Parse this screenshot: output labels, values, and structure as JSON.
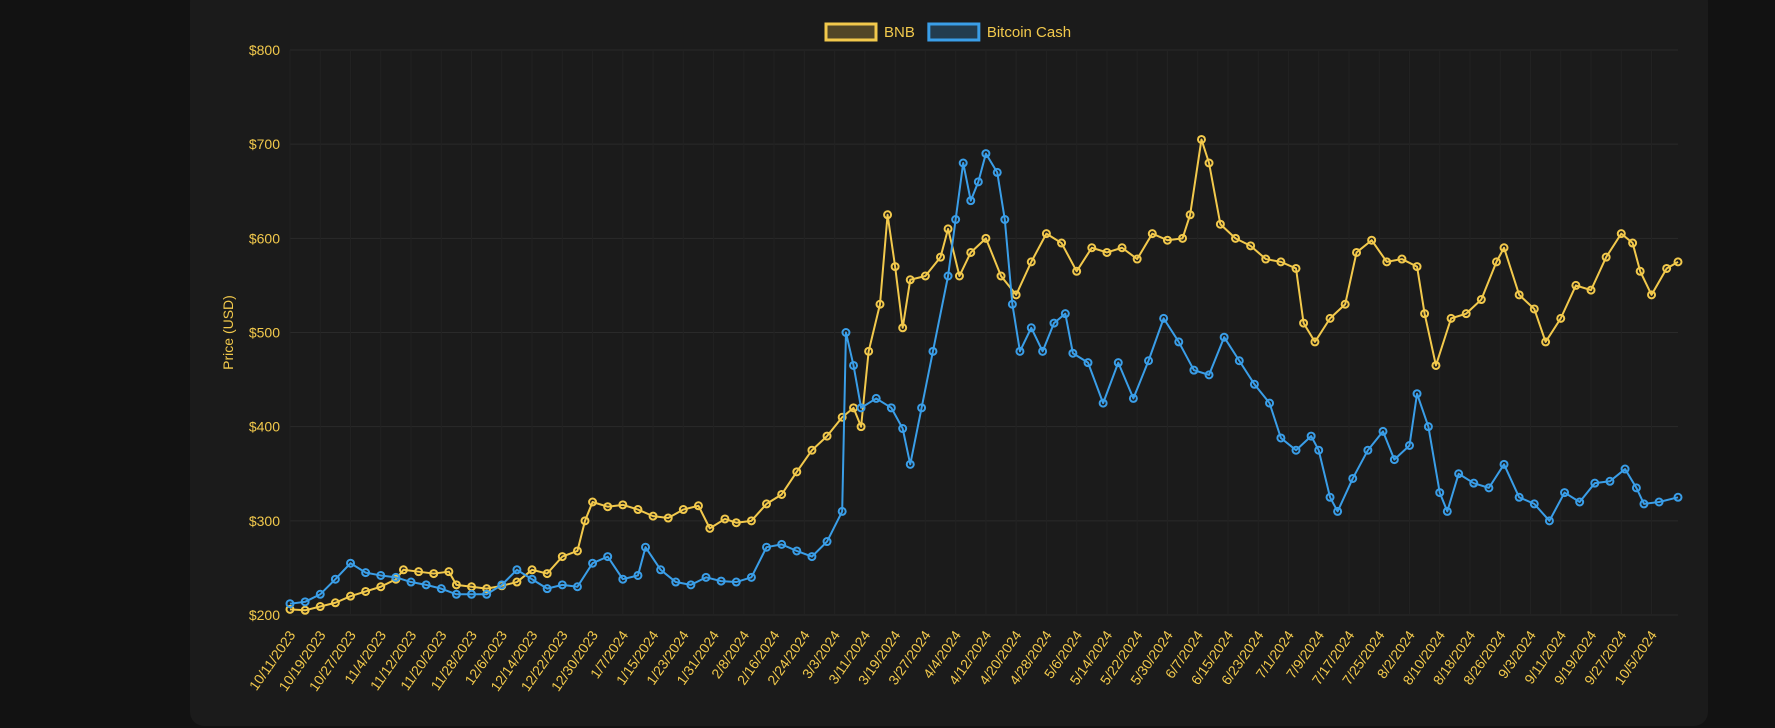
{
  "chart_data": {
    "type": "line",
    "ylabel": "Price (USD)",
    "ylim": [
      200,
      800
    ],
    "yticks": [
      200,
      300,
      400,
      500,
      600,
      700,
      800
    ],
    "ytick_labels": [
      "$200",
      "$300",
      "$400",
      "$500",
      "$600",
      "$700",
      "$800"
    ],
    "x_start": "2023-10-11",
    "x_end": "2024-10-12",
    "x_tick_labels": [
      "10/11/2023",
      "10/19/2023",
      "10/27/2023",
      "11/4/2023",
      "11/12/2023",
      "11/20/2023",
      "11/28/2023",
      "12/6/2023",
      "12/14/2023",
      "12/22/2023",
      "12/30/2023",
      "1/7/2024",
      "1/15/2024",
      "1/23/2024",
      "1/31/2024",
      "2/8/2024",
      "2/16/2024",
      "2/24/2024",
      "3/3/2024",
      "3/11/2024",
      "3/19/2024",
      "3/27/2024",
      "4/4/2024",
      "4/12/2024",
      "4/20/2024",
      "4/28/2024",
      "5/6/2024",
      "5/14/2024",
      "5/22/2024",
      "5/30/2024",
      "6/7/2024",
      "6/15/2024",
      "6/23/2024",
      "7/1/2024",
      "7/9/2024",
      "7/17/2024",
      "7/25/2024",
      "8/2/2024",
      "8/10/2024",
      "8/18/2024",
      "8/26/2024",
      "9/3/2024",
      "9/11/2024",
      "9/19/2024",
      "9/27/2024",
      "10/5/2024"
    ],
    "legend_position": "top-center",
    "grid": true,
    "series": [
      {
        "name": "BNB",
        "color": "#f2c94c",
        "points": [
          [
            "2023-10-11",
            206
          ],
          [
            "2023-10-15",
            205
          ],
          [
            "2023-10-19",
            209
          ],
          [
            "2023-10-23",
            213
          ],
          [
            "2023-10-27",
            220
          ],
          [
            "2023-10-31",
            225
          ],
          [
            "2023-11-04",
            230
          ],
          [
            "2023-11-08",
            238
          ],
          [
            "2023-11-10",
            248
          ],
          [
            "2023-11-14",
            246
          ],
          [
            "2023-11-18",
            244
          ],
          [
            "2023-11-22",
            246
          ],
          [
            "2023-11-24",
            232
          ],
          [
            "2023-11-28",
            230
          ],
          [
            "2023-12-02",
            228
          ],
          [
            "2023-12-06",
            231
          ],
          [
            "2023-12-10",
            235
          ],
          [
            "2023-12-14",
            248
          ],
          [
            "2023-12-18",
            244
          ],
          [
            "2023-12-22",
            262
          ],
          [
            "2023-12-26",
            268
          ],
          [
            "2023-12-28",
            300
          ],
          [
            "2023-12-30",
            320
          ],
          [
            "2024-01-03",
            315
          ],
          [
            "2024-01-07",
            317
          ],
          [
            "2024-01-11",
            312
          ],
          [
            "2024-01-15",
            305
          ],
          [
            "2024-01-19",
            303
          ],
          [
            "2024-01-23",
            312
          ],
          [
            "2024-01-27",
            316
          ],
          [
            "2024-01-30",
            292
          ],
          [
            "2024-02-03",
            302
          ],
          [
            "2024-02-06",
            298
          ],
          [
            "2024-02-10",
            300
          ],
          [
            "2024-02-14",
            318
          ],
          [
            "2024-02-18",
            328
          ],
          [
            "2024-02-22",
            352
          ],
          [
            "2024-02-26",
            375
          ],
          [
            "2024-03-01",
            390
          ],
          [
            "2024-03-05",
            410
          ],
          [
            "2024-03-08",
            420
          ],
          [
            "2024-03-10",
            400
          ],
          [
            "2024-03-12",
            480
          ],
          [
            "2024-03-15",
            530
          ],
          [
            "2024-03-17",
            625
          ],
          [
            "2024-03-19",
            570
          ],
          [
            "2024-03-21",
            505
          ],
          [
            "2024-03-23",
            556
          ],
          [
            "2024-03-27",
            560
          ],
          [
            "2024-03-31",
            580
          ],
          [
            "2024-04-02",
            610
          ],
          [
            "2024-04-05",
            560
          ],
          [
            "2024-04-08",
            585
          ],
          [
            "2024-04-12",
            600
          ],
          [
            "2024-04-16",
            560
          ],
          [
            "2024-04-20",
            540
          ],
          [
            "2024-04-24",
            575
          ],
          [
            "2024-04-28",
            605
          ],
          [
            "2024-05-02",
            595
          ],
          [
            "2024-05-06",
            565
          ],
          [
            "2024-05-10",
            590
          ],
          [
            "2024-05-14",
            585
          ],
          [
            "2024-05-18",
            590
          ],
          [
            "2024-05-22",
            578
          ],
          [
            "2024-05-26",
            605
          ],
          [
            "2024-05-30",
            598
          ],
          [
            "2024-06-03",
            600
          ],
          [
            "2024-06-05",
            625
          ],
          [
            "2024-06-08",
            705
          ],
          [
            "2024-06-10",
            680
          ],
          [
            "2024-06-13",
            615
          ],
          [
            "2024-06-17",
            600
          ],
          [
            "2024-06-21",
            592
          ],
          [
            "2024-06-25",
            578
          ],
          [
            "2024-06-29",
            575
          ],
          [
            "2024-07-03",
            568
          ],
          [
            "2024-07-05",
            510
          ],
          [
            "2024-07-08",
            490
          ],
          [
            "2024-07-12",
            515
          ],
          [
            "2024-07-16",
            530
          ],
          [
            "2024-07-19",
            585
          ],
          [
            "2024-07-23",
            598
          ],
          [
            "2024-07-27",
            575
          ],
          [
            "2024-07-31",
            578
          ],
          [
            "2024-08-04",
            570
          ],
          [
            "2024-08-06",
            520
          ],
          [
            "2024-08-09",
            465
          ],
          [
            "2024-08-13",
            515
          ],
          [
            "2024-08-17",
            520
          ],
          [
            "2024-08-21",
            535
          ],
          [
            "2024-08-25",
            575
          ],
          [
            "2024-08-27",
            590
          ],
          [
            "2024-08-31",
            540
          ],
          [
            "2024-09-04",
            525
          ],
          [
            "2024-09-07",
            490
          ],
          [
            "2024-09-11",
            515
          ],
          [
            "2024-09-15",
            550
          ],
          [
            "2024-09-19",
            545
          ],
          [
            "2024-09-23",
            580
          ],
          [
            "2024-09-27",
            605
          ],
          [
            "2024-09-30",
            595
          ],
          [
            "2024-10-02",
            565
          ],
          [
            "2024-10-05",
            540
          ],
          [
            "2024-10-09",
            568
          ],
          [
            "2024-10-12",
            575
          ]
        ]
      },
      {
        "name": "Bitcoin Cash",
        "color": "#3a9ee8",
        "points": [
          [
            "2023-10-11",
            212
          ],
          [
            "2023-10-15",
            214
          ],
          [
            "2023-10-19",
            222
          ],
          [
            "2023-10-23",
            238
          ],
          [
            "2023-10-27",
            255
          ],
          [
            "2023-10-31",
            245
          ],
          [
            "2023-11-04",
            242
          ],
          [
            "2023-11-08",
            240
          ],
          [
            "2023-11-12",
            235
          ],
          [
            "2023-11-16",
            232
          ],
          [
            "2023-11-20",
            228
          ],
          [
            "2023-11-24",
            222
          ],
          [
            "2023-11-28",
            222
          ],
          [
            "2023-12-02",
            222
          ],
          [
            "2023-12-06",
            232
          ],
          [
            "2023-12-10",
            248
          ],
          [
            "2023-12-14",
            238
          ],
          [
            "2023-12-18",
            228
          ],
          [
            "2023-12-22",
            232
          ],
          [
            "2023-12-26",
            230
          ],
          [
            "2023-12-30",
            255
          ],
          [
            "2024-01-03",
            262
          ],
          [
            "2024-01-07",
            238
          ],
          [
            "2024-01-11",
            242
          ],
          [
            "2024-01-13",
            272
          ],
          [
            "2024-01-17",
            248
          ],
          [
            "2024-01-21",
            235
          ],
          [
            "2024-01-25",
            232
          ],
          [
            "2024-01-29",
            240
          ],
          [
            "2024-02-02",
            236
          ],
          [
            "2024-02-06",
            235
          ],
          [
            "2024-02-10",
            240
          ],
          [
            "2024-02-14",
            272
          ],
          [
            "2024-02-18",
            275
          ],
          [
            "2024-02-22",
            268
          ],
          [
            "2024-02-26",
            262
          ],
          [
            "2024-03-01",
            278
          ],
          [
            "2024-03-05",
            310
          ],
          [
            "2024-03-06",
            500
          ],
          [
            "2024-03-08",
            465
          ],
          [
            "2024-03-10",
            420
          ],
          [
            "2024-03-14",
            430
          ],
          [
            "2024-03-18",
            420
          ],
          [
            "2024-03-21",
            398
          ],
          [
            "2024-03-23",
            360
          ],
          [
            "2024-03-26",
            420
          ],
          [
            "2024-03-29",
            480
          ],
          [
            "2024-04-02",
            560
          ],
          [
            "2024-04-04",
            620
          ],
          [
            "2024-04-06",
            680
          ],
          [
            "2024-04-08",
            640
          ],
          [
            "2024-04-10",
            660
          ],
          [
            "2024-04-12",
            690
          ],
          [
            "2024-04-15",
            670
          ],
          [
            "2024-04-17",
            620
          ],
          [
            "2024-04-19",
            530
          ],
          [
            "2024-04-21",
            480
          ],
          [
            "2024-04-24",
            505
          ],
          [
            "2024-04-27",
            480
          ],
          [
            "2024-04-30",
            510
          ],
          [
            "2024-05-03",
            520
          ],
          [
            "2024-05-05",
            478
          ],
          [
            "2024-05-09",
            468
          ],
          [
            "2024-05-13",
            425
          ],
          [
            "2024-05-17",
            468
          ],
          [
            "2024-05-21",
            430
          ],
          [
            "2024-05-25",
            470
          ],
          [
            "2024-05-29",
            515
          ],
          [
            "2024-06-02",
            490
          ],
          [
            "2024-06-06",
            460
          ],
          [
            "2024-06-10",
            455
          ],
          [
            "2024-06-14",
            495
          ],
          [
            "2024-06-18",
            470
          ],
          [
            "2024-06-22",
            445
          ],
          [
            "2024-06-26",
            425
          ],
          [
            "2024-06-29",
            388
          ],
          [
            "2024-07-03",
            375
          ],
          [
            "2024-07-07",
            390
          ],
          [
            "2024-07-09",
            375
          ],
          [
            "2024-07-12",
            325
          ],
          [
            "2024-07-14",
            310
          ],
          [
            "2024-07-18",
            345
          ],
          [
            "2024-07-22",
            375
          ],
          [
            "2024-07-26",
            395
          ],
          [
            "2024-07-29",
            365
          ],
          [
            "2024-08-02",
            380
          ],
          [
            "2024-08-04",
            435
          ],
          [
            "2024-08-07",
            400
          ],
          [
            "2024-08-10",
            330
          ],
          [
            "2024-08-12",
            310
          ],
          [
            "2024-08-15",
            350
          ],
          [
            "2024-08-19",
            340
          ],
          [
            "2024-08-23",
            335
          ],
          [
            "2024-08-27",
            360
          ],
          [
            "2024-08-31",
            325
          ],
          [
            "2024-09-04",
            318
          ],
          [
            "2024-09-08",
            300
          ],
          [
            "2024-09-12",
            330
          ],
          [
            "2024-09-16",
            320
          ],
          [
            "2024-09-20",
            340
          ],
          [
            "2024-09-24",
            342
          ],
          [
            "2024-09-28",
            355
          ],
          [
            "2024-10-01",
            335
          ],
          [
            "2024-10-03",
            318
          ],
          [
            "2024-10-07",
            320
          ],
          [
            "2024-10-12",
            325
          ]
        ]
      }
    ]
  }
}
